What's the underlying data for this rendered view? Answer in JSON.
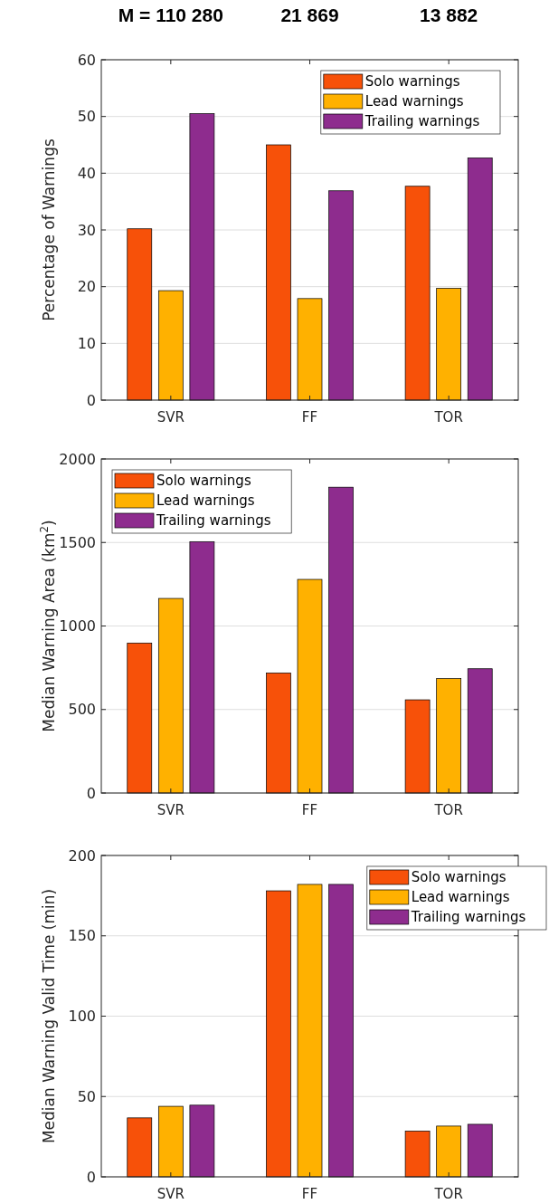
{
  "chart_data": [
    {
      "type": "bar",
      "categories": [
        "SVR",
        "FF",
        "TOR"
      ],
      "ylabel": "Percentage of Warnings",
      "ylim": [
        0,
        60
      ],
      "yticks": [
        0,
        10,
        20,
        30,
        40,
        50,
        60
      ],
      "grid": "y",
      "legend": "top right",
      "annotations": [
        "M = 110 280",
        "21 869",
        "13 882"
      ],
      "series": [
        {
          "name": "Solo warnings",
          "color": "#f75109",
          "values": [
            30.2,
            45.0,
            37.7
          ]
        },
        {
          "name": "Lead warnings",
          "color": "#ffb100",
          "values": [
            19.3,
            17.9,
            19.7
          ]
        },
        {
          "name": "Trailing warnings",
          "color": "#8e2c8e",
          "values": [
            50.5,
            36.9,
            42.7
          ]
        }
      ]
    },
    {
      "type": "bar",
      "categories": [
        "SVR",
        "FF",
        "TOR"
      ],
      "ylabel": "Median Warning Area (km$^{2}$)",
      "ylim": [
        0,
        2000
      ],
      "yticks": [
        0,
        500,
        1000,
        1500,
        2000
      ],
      "grid": "y",
      "legend": "top left",
      "series": [
        {
          "name": "Solo warnings",
          "color": "#f75109",
          "values": [
            898,
            719,
            558
          ]
        },
        {
          "name": "Lead warnings",
          "color": "#ffb100",
          "values": [
            1165,
            1279,
            685
          ]
        },
        {
          "name": "Trailing warnings",
          "color": "#8e2c8e",
          "values": [
            1505,
            1831,
            744
          ]
        }
      ]
    },
    {
      "type": "bar",
      "categories": [
        "SVR",
        "FF",
        "TOR"
      ],
      "ylabel": "Median Warning Valid Time (min)",
      "ylim": [
        0,
        200
      ],
      "yticks": [
        0,
        50,
        100,
        150,
        200
      ],
      "grid": "y",
      "legend": "top right",
      "series": [
        {
          "name": "Solo warnings",
          "color": "#f75109",
          "values": [
            36.7,
            178,
            28.5
          ]
        },
        {
          "name": "Lead warnings",
          "color": "#ffb100",
          "values": [
            43.9,
            182,
            31.6
          ]
        },
        {
          "name": "Trailing warnings",
          "color": "#8e2c8e",
          "values": [
            44.6,
            182,
            32.7
          ]
        }
      ]
    }
  ]
}
